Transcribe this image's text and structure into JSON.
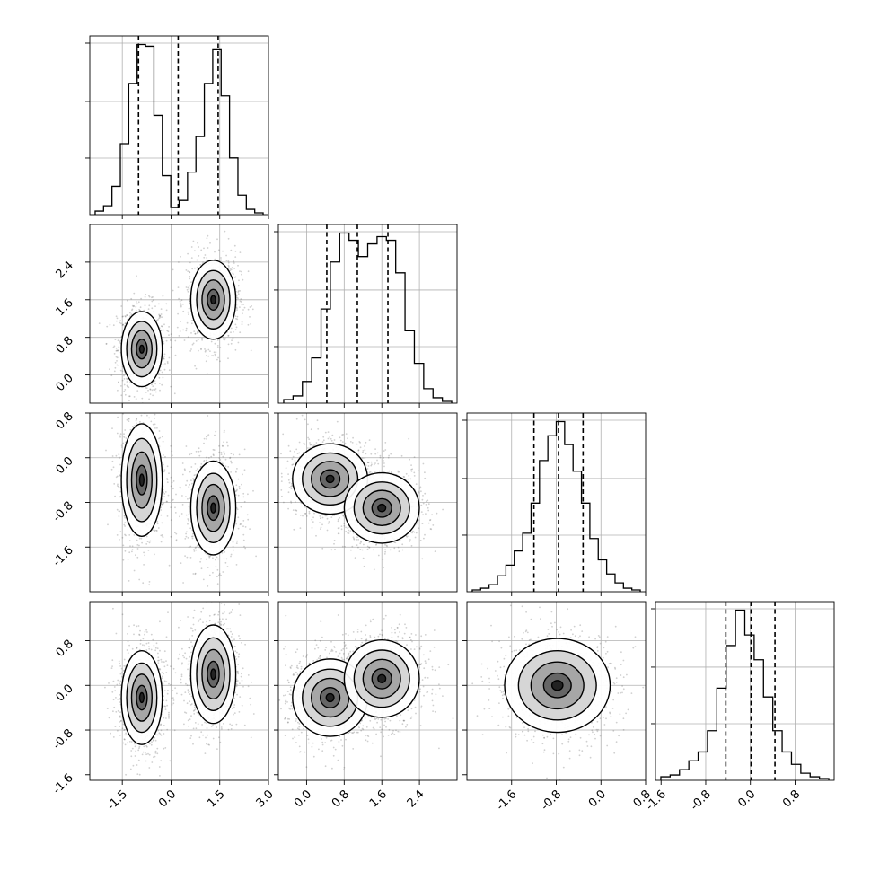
{
  "chart_data": {
    "type": "corner",
    "parameters": [
      {
        "id": "p0",
        "range": [
          -2.5,
          3.0
        ],
        "ticks": [
          -1.5,
          0.0,
          1.5,
          3.0
        ],
        "tick_labels": [
          "-1.5",
          "0.0",
          "1.5",
          "3.0"
        ],
        "quantiles": [
          -1.0,
          0.22,
          1.45
        ],
        "grid": [
          -1.5,
          0.0,
          1.5
        ],
        "hist": [
          0.02,
          0.05,
          0.16,
          0.4,
          0.74,
          0.96,
          0.95,
          0.56,
          0.22,
          0.04,
          0.08,
          0.24,
          0.44,
          0.74,
          0.93,
          0.67,
          0.32,
          0.11,
          0.03,
          0.01
        ]
      },
      {
        "id": "p1",
        "range": [
          -0.6,
          3.2
        ],
        "ticks": [
          0.0,
          0.8,
          1.6,
          2.4
        ],
        "tick_labels": [
          "0.0",
          "0.8",
          "1.6",
          "2.4"
        ],
        "quantiles": [
          0.43,
          1.08,
          1.73
        ],
        "grid": [
          0.0,
          0.8,
          1.6,
          2.4
        ],
        "hist": [
          0.02,
          0.04,
          0.12,
          0.25,
          0.52,
          0.78,
          0.94,
          0.9,
          0.81,
          0.88,
          0.92,
          0.9,
          0.72,
          0.4,
          0.22,
          0.08,
          0.03,
          0.01
        ]
      },
      {
        "id": "p2",
        "range": [
          -2.4,
          0.8
        ],
        "ticks": [
          -1.6,
          -0.8,
          0.0,
          0.8
        ],
        "tick_labels": [
          "-1.6",
          "-0.8",
          "0.0",
          "0.8"
        ],
        "quantiles": [
          -1.2,
          -0.76,
          -0.32
        ],
        "grid": [
          -1.6,
          -0.8,
          0.0
        ],
        "hist": [
          0.01,
          0.02,
          0.04,
          0.09,
          0.15,
          0.23,
          0.33,
          0.5,
          0.74,
          0.88,
          0.96,
          0.83,
          0.68,
          0.5,
          0.3,
          0.18,
          0.1,
          0.05,
          0.02,
          0.01
        ]
      },
      {
        "id": "p3",
        "range": [
          -1.7,
          1.5
        ],
        "ticks": [
          -1.6,
          -0.8,
          0.0,
          0.8
        ],
        "tick_labels": [
          "-1.6",
          "-0.8",
          "0.0",
          "0.8"
        ],
        "quantiles": [
          -0.44,
          0.01,
          0.44
        ],
        "grid": [
          -0.8,
          0.0,
          0.8
        ],
        "hist": [
          0.02,
          0.03,
          0.06,
          0.11,
          0.16,
          0.28,
          0.52,
          0.76,
          0.96,
          0.82,
          0.68,
          0.47,
          0.28,
          0.16,
          0.09,
          0.04,
          0.02,
          0.01
        ]
      }
    ],
    "pairs": [
      {
        "x": 0,
        "y": 1,
        "modes": [
          {
            "cx": -0.9,
            "cy": 0.55,
            "sx": 0.3,
            "sy": 0.38
          },
          {
            "cx": 1.3,
            "cy": 1.6,
            "sx": 0.33,
            "sy": 0.4
          }
        ]
      },
      {
        "x": 0,
        "y": 2,
        "modes": [
          {
            "cx": -0.9,
            "cy": -0.4,
            "sx": 0.3,
            "sy": 0.48
          },
          {
            "cx": 1.3,
            "cy": -0.9,
            "sx": 0.33,
            "sy": 0.4
          }
        ]
      },
      {
        "x": 1,
        "y": 2,
        "modes": [
          {
            "cx": 0.5,
            "cy": -0.38,
            "sx": 0.38,
            "sy": 0.3
          },
          {
            "cx": 1.6,
            "cy": -0.9,
            "sx": 0.38,
            "sy": 0.3
          }
        ]
      },
      {
        "x": 0,
        "y": 3,
        "modes": [
          {
            "cx": -0.9,
            "cy": -0.22,
            "sx": 0.3,
            "sy": 0.4
          },
          {
            "cx": 1.3,
            "cy": 0.2,
            "sx": 0.33,
            "sy": 0.42
          }
        ]
      },
      {
        "x": 1,
        "y": 3,
        "modes": [
          {
            "cx": 0.5,
            "cy": -0.22,
            "sx": 0.38,
            "sy": 0.33
          },
          {
            "cx": 1.6,
            "cy": 0.12,
            "sx": 0.38,
            "sy": 0.33
          }
        ]
      },
      {
        "x": 2,
        "y": 3,
        "modes": [
          {
            "cx": -0.78,
            "cy": 0.0,
            "sx": 0.45,
            "sy": 0.4
          }
        ]
      }
    ],
    "grid": true,
    "legend": "none"
  }
}
